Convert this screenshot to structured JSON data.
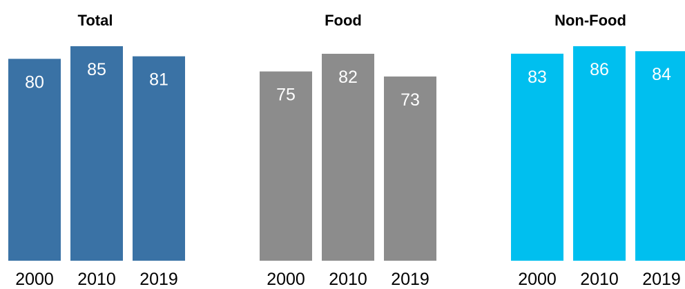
{
  "chart_data": [
    {
      "type": "bar",
      "title": "Total",
      "categories": [
        "2000",
        "2010",
        "2019"
      ],
      "values": [
        80,
        85,
        81
      ],
      "color": "#3a72a5",
      "ylim": [
        0,
        85
      ]
    },
    {
      "type": "bar",
      "title": "Food",
      "categories": [
        "2000",
        "2010",
        "2019"
      ],
      "values": [
        75,
        82,
        73
      ],
      "color": "#8c8c8c",
      "ylim": [
        0,
        85
      ]
    },
    {
      "type": "bar",
      "title": "Non-Food",
      "categories": [
        "2000",
        "2010",
        "2019"
      ],
      "values": [
        83,
        86,
        84
      ],
      "color": "#00bfef",
      "ylim": [
        0,
        86
      ]
    }
  ]
}
